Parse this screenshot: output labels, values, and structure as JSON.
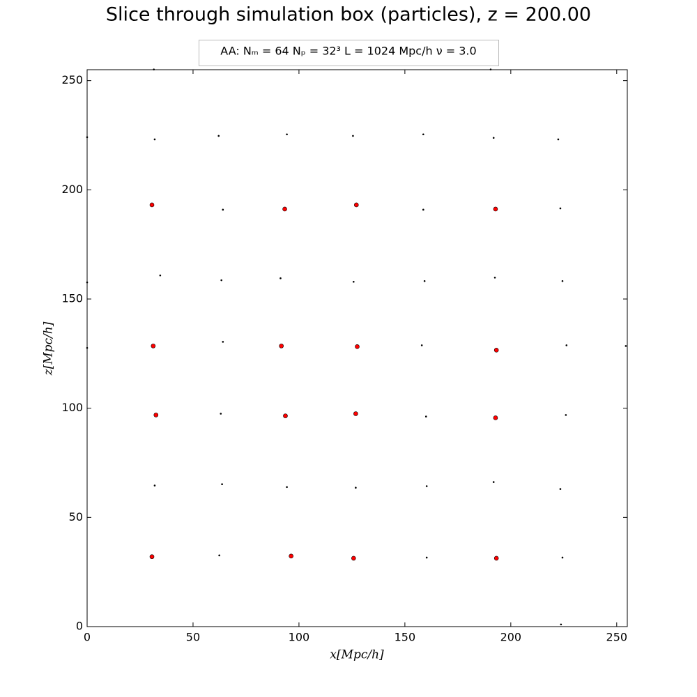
{
  "chart_data": {
    "type": "scatter",
    "title": "Slice through simulation box (particles), z = 200.00",
    "subtitle": "AA:  Nₘ = 64  Nₚ = 32³  L = 1024 Mpc/h  ν = 3.0",
    "x_label": "x[Mpc/h]",
    "y_label": "z[Mpc/h]",
    "xlim": [
      0,
      255
    ],
    "ylim": [
      0,
      255
    ],
    "xticks": [
      0,
      50,
      100,
      150,
      200,
      250
    ],
    "yticks": [
      0,
      50,
      100,
      150,
      200,
      250
    ],
    "grid": false,
    "series": [
      {
        "color": "#000000",
        "marker_size": 1,
        "x": [
          0,
          31.9,
          62.1,
          94.3,
          125.5,
          158.7,
          191.9,
          222.4,
          31.5,
          190.5,
          64.1,
          158.7,
          223.4,
          0,
          34.5,
          63.4,
          91.3,
          125.8,
          159.3,
          192.5,
          224.4,
          0,
          64.1,
          158.0,
          226.3,
          254.3,
          63.1,
          160.0,
          226.0,
          31.9,
          63.7,
          94.3,
          126.8,
          160.3,
          191.9,
          223.4,
          62.4,
          160.3,
          224.4,
          223.7
        ],
        "values": [
          224.1,
          223.1,
          224.7,
          225.4,
          224.7,
          225.4,
          223.8,
          223.1,
          255.1,
          255.1,
          190.9,
          190.9,
          191.5,
          157.6,
          160.8,
          158.6,
          159.5,
          157.9,
          158.2,
          159.8,
          158.2,
          127.6,
          130.4,
          128.8,
          128.8,
          128.5,
          97.5,
          96.2,
          96.9,
          64.6,
          65.2,
          63.9,
          63.6,
          64.3,
          66.2,
          63.0,
          32.6,
          31.6,
          31.6,
          1.0
        ]
      },
      {
        "color": "#ff0000",
        "marker_size": 3,
        "x": [
          30.6,
          93.3,
          127.1,
          192.8,
          31.2,
          91.7,
          127.5,
          193.2,
          32.5,
          93.6,
          126.8,
          192.8,
          30.6,
          96.3,
          125.8,
          193.2
        ],
        "values": [
          193.1,
          191.2,
          193.1,
          191.2,
          128.5,
          128.5,
          128.2,
          126.6,
          96.9,
          96.5,
          97.5,
          95.6,
          32.0,
          32.3,
          31.3,
          31.3
        ]
      }
    ]
  }
}
